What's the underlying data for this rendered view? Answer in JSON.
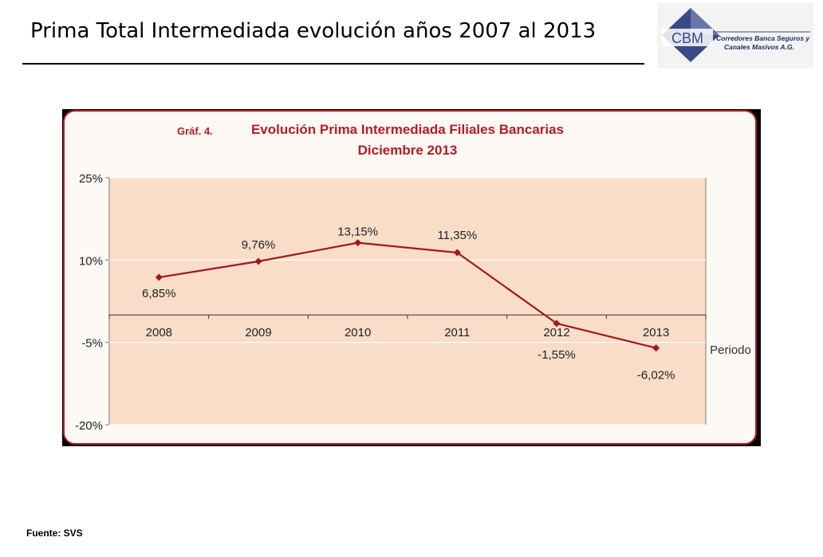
{
  "slide": {
    "title": "Prima Total Intermediada evolución años 2007 al 2013",
    "source": "Fuente: SVS"
  },
  "logo": {
    "acronym": "CBM",
    "line1": "Corredores Banca Seguros y",
    "line2": "Canales Masivos A.G.",
    "colors": {
      "diamond": "#3b4a84",
      "accent": "#8a94c0",
      "background": "#f3f3f3"
    }
  },
  "chart_data": {
    "type": "line",
    "label_prefix": "Gráf. 4.",
    "title": "Evolución Prima Intermediada Filiales Bancarias",
    "subtitle": "Diciembre 2013",
    "xlabel": "Periodo",
    "ylabel": "",
    "categories": [
      "2008",
      "2009",
      "2010",
      "2011",
      "2012",
      "2013"
    ],
    "series": [
      {
        "values": [
          6.85,
          9.76,
          13.15,
          11.35,
          -1.55,
          -6.02
        ],
        "data_labels": [
          "6,85%",
          "9,76%",
          "13,15%",
          "11,35%",
          "-1,55%",
          "-6,02%"
        ],
        "color": "#a3161b"
      }
    ],
    "ylim": [
      -20,
      25
    ],
    "yticks": [
      25,
      10,
      -5,
      -20
    ],
    "ytick_labels": [
      "25%",
      "10%",
      "-5%",
      "-20%"
    ],
    "x_axis_crosses_at": 0,
    "grid": true,
    "colors": {
      "plot_background": "#f9ddc8",
      "panel_background": "#fdf9f5",
      "panel_border": "#b31d24",
      "title_color": "#b31d24"
    }
  }
}
